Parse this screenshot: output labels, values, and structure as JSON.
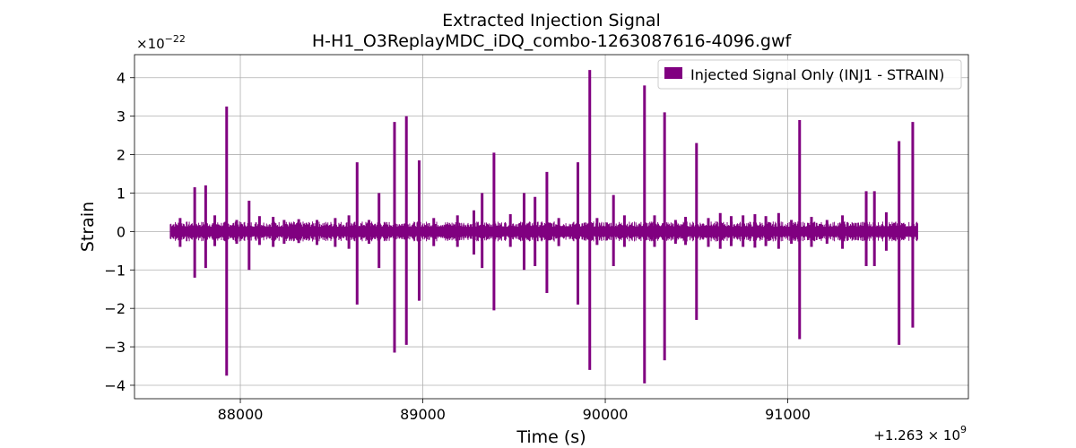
{
  "chart_data": {
    "type": "line",
    "title": "Extracted Injection Signal",
    "subtitle": "H-H1_O3ReplayMDC_iDQ_combo-1263087616-4096.gwf",
    "xlabel": "Time (s)",
    "ylabel": "Strain",
    "x_offset_label": "+1.263 × 10",
    "x_offset_exp": "9",
    "y_scale_label": "×10",
    "y_scale_exp": "−22",
    "xlim": [
      87420,
      91990
    ],
    "ylim": [
      -4.35,
      4.6
    ],
    "xticks": [
      88000,
      89000,
      90000,
      91000
    ],
    "xtick_labels": [
      "88000",
      "89000",
      "90000",
      "91000"
    ],
    "yticks": [
      -4,
      -3,
      -2,
      -1,
      0,
      1,
      2,
      3,
      4
    ],
    "ytick_labels": [
      "−4",
      "−3",
      "−2",
      "−1",
      "0",
      "1",
      "2",
      "3",
      "4"
    ],
    "grid": true,
    "legend_position": "top-right",
    "series": [
      {
        "name": "Injected Signal Only (INJ1 - STRAIN)",
        "color": "#800080",
        "x_range": [
          87616,
          91712
        ],
        "baseline_band": 0.12,
        "spikes_x": [
          87670,
          87750,
          87810,
          87860,
          87925,
          87980,
          88048,
          88105,
          88180,
          88240,
          88320,
          88420,
          88520,
          88595,
          88640,
          88705,
          88760,
          88845,
          88910,
          88980,
          89060,
          89190,
          89280,
          89325,
          89390,
          89480,
          89555,
          89615,
          89680,
          89745,
          89850,
          89915,
          89955,
          90045,
          90105,
          90215,
          90270,
          90325,
          90385,
          90440,
          90500,
          90565,
          90630,
          90690,
          90755,
          90820,
          90880,
          90950,
          91020,
          91065,
          91130,
          91215,
          91300,
          91430,
          91475,
          91540,
          91610,
          91685
        ],
        "spikes_ymax": [
          0.35,
          1.15,
          1.2,
          0.42,
          3.25,
          0.3,
          0.8,
          0.4,
          0.38,
          0.3,
          0.32,
          0.3,
          0.35,
          0.42,
          1.8,
          0.3,
          1.0,
          2.85,
          3.0,
          1.85,
          0.35,
          0.42,
          0.55,
          1.0,
          2.05,
          0.45,
          1.0,
          0.9,
          1.55,
          0.35,
          1.8,
          4.2,
          0.35,
          0.95,
          0.42,
          3.8,
          0.42,
          3.1,
          0.3,
          0.38,
          2.3,
          0.35,
          0.48,
          0.4,
          0.42,
          0.45,
          0.4,
          0.48,
          0.3,
          2.9,
          0.38,
          0.3,
          0.42,
          1.05,
          1.05,
          0.5,
          2.35,
          2.85
        ],
        "spikes_ymin": [
          -0.4,
          -1.2,
          -0.95,
          -0.38,
          -3.75,
          -0.32,
          -1.0,
          -0.35,
          -0.4,
          -0.32,
          -0.3,
          -0.35,
          -0.4,
          -0.45,
          -1.9,
          -0.32,
          -0.95,
          -3.15,
          -2.95,
          -1.8,
          -0.38,
          -0.4,
          -0.6,
          -0.95,
          -2.05,
          -0.4,
          -1.0,
          -0.9,
          -1.6,
          -0.38,
          -1.9,
          -3.6,
          -0.35,
          -0.9,
          -0.4,
          -3.95,
          -0.4,
          -3.35,
          -0.32,
          -0.35,
          -2.3,
          -0.4,
          -0.45,
          -0.38,
          -0.4,
          -0.42,
          -0.38,
          -0.45,
          -0.32,
          -2.8,
          -0.4,
          -0.32,
          -0.45,
          -0.9,
          -0.9,
          -0.5,
          -2.95,
          -2.5
        ]
      }
    ]
  }
}
